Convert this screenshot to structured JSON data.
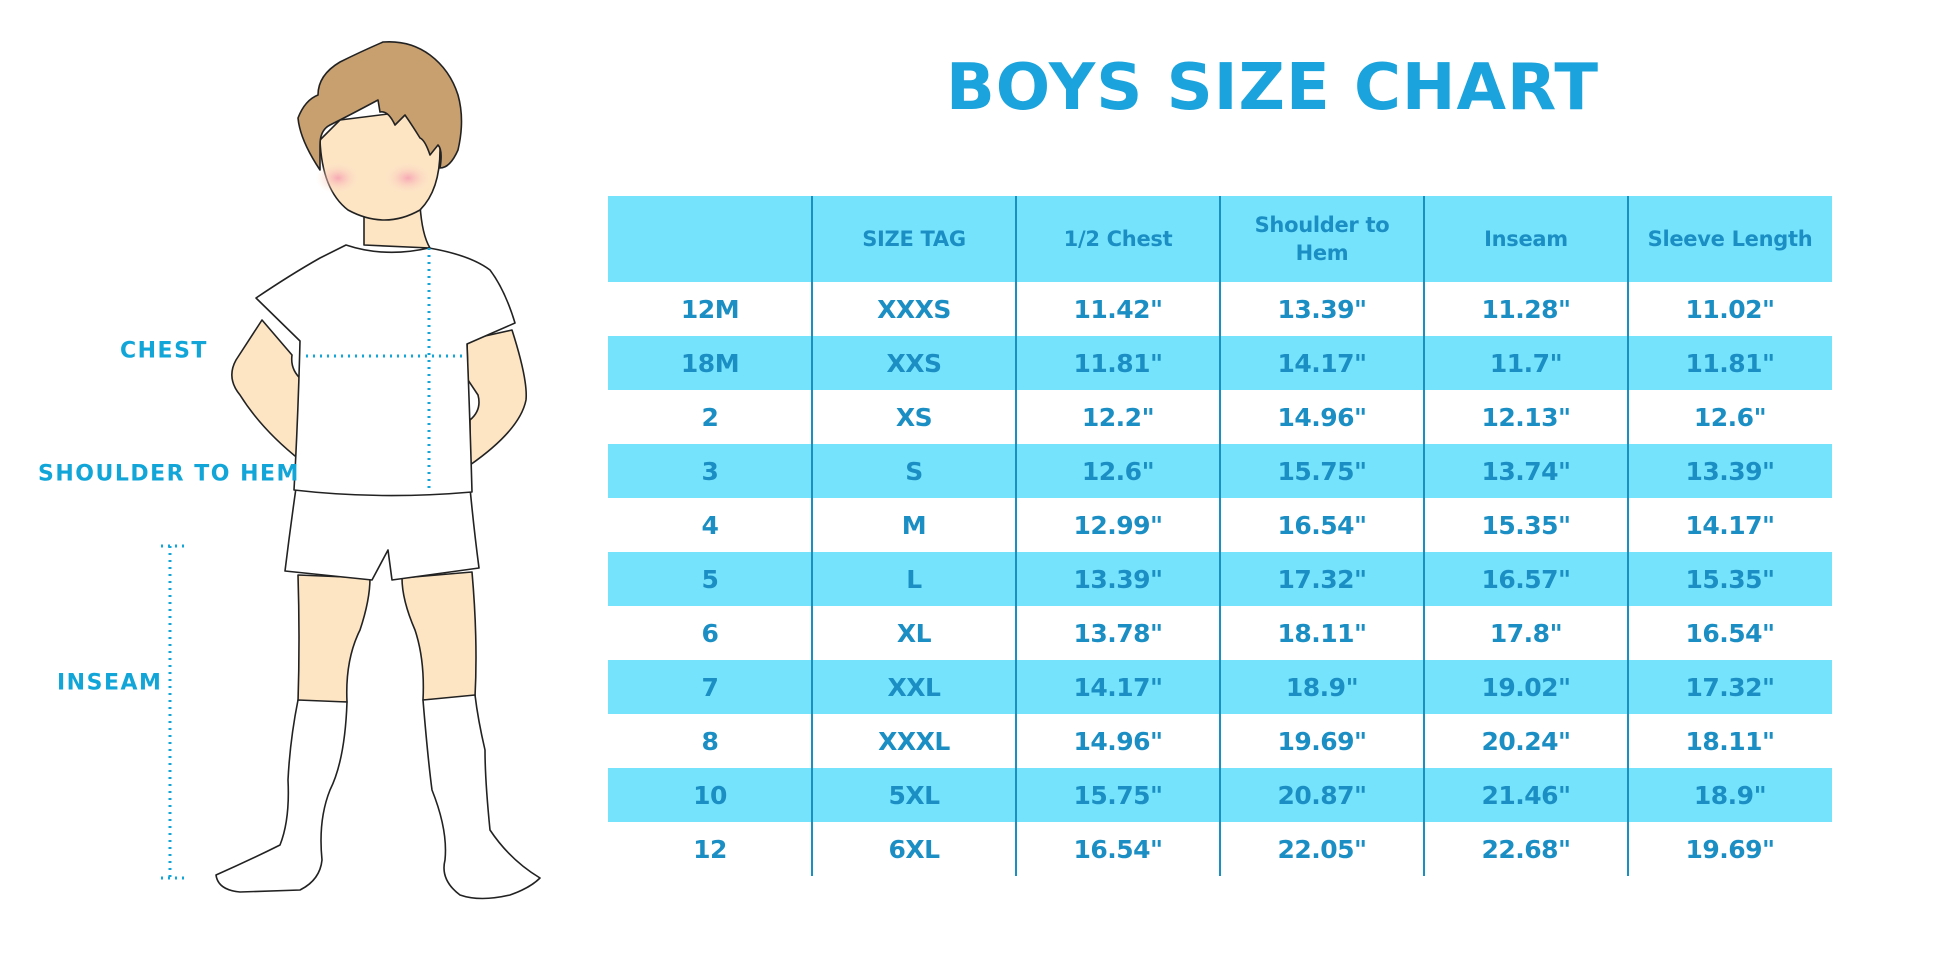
{
  "title": "BOYS SIZE CHART",
  "measurement_labels": {
    "chest": "CHEST",
    "shoulder_to_hem": "SHOULDER TO HEM",
    "inseam": "INSEAM"
  },
  "colors": {
    "title": "#1aa3dc",
    "header_bg": "#76e3fd",
    "text": "#1b8fc3",
    "guide_lines": "#12a6d8"
  },
  "table": {
    "headers": [
      "",
      "SIZE TAG",
      "1/2 Chest",
      "Shoulder to Hem",
      "Inseam",
      "Sleeve Length"
    ],
    "rows": [
      [
        "12M",
        "XXXS",
        "11.42\"",
        "13.39\"",
        "11.28\"",
        "11.02\""
      ],
      [
        "18M",
        "XXS",
        "11.81\"",
        "14.17\"",
        "11.7\"",
        "11.81\""
      ],
      [
        "2",
        "XS",
        "12.2\"",
        "14.96\"",
        "12.13\"",
        "12.6\""
      ],
      [
        "3",
        "S",
        "12.6\"",
        "15.75\"",
        "13.74\"",
        "13.39\""
      ],
      [
        "4",
        "M",
        "12.99\"",
        "16.54\"",
        "15.35\"",
        "14.17\""
      ],
      [
        "5",
        "L",
        "13.39\"",
        "17.32\"",
        "16.57\"",
        "15.35\""
      ],
      [
        "6",
        "XL",
        "13.78\"",
        "18.11\"",
        "17.8\"",
        "16.54\""
      ],
      [
        "7",
        "XXL",
        "14.17\"",
        "18.9\"",
        "19.02\"",
        "17.32\""
      ],
      [
        "8",
        "XXXL",
        "14.96\"",
        "19.69\"",
        "20.24\"",
        "18.11\""
      ],
      [
        "10",
        "5XL",
        "15.75\"",
        "20.87\"",
        "21.46\"",
        "18.9\""
      ],
      [
        "12",
        "6XL",
        "16.54\"",
        "22.05\"",
        "22.68\"",
        "19.69\""
      ]
    ]
  }
}
